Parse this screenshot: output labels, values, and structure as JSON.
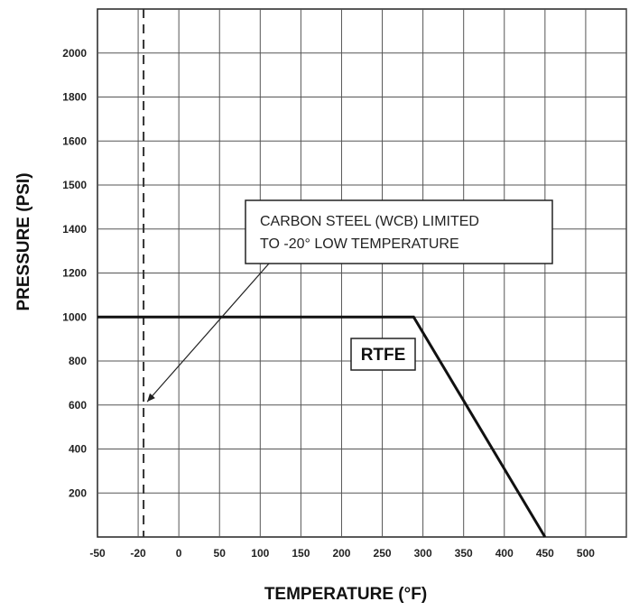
{
  "chart_data": {
    "type": "line",
    "xlabel": "TEMPERATURE (°F)",
    "ylabel": "PRESSURE (PSI)",
    "x_ticks": [
      "-50",
      "-20",
      "0",
      "50",
      "100",
      "150",
      "200",
      "250",
      "300",
      "350",
      "400",
      "450",
      "500"
    ],
    "y_ticks": [
      "200",
      "400",
      "600",
      "800",
      "1000",
      "1200",
      "1400",
      "1500",
      "1600",
      "1800",
      "2000"
    ],
    "series": [
      {
        "name": "RTFE",
        "points": [
          {
            "x": "-50",
            "y": 1000
          },
          {
            "x": "290",
            "y": 1000
          },
          {
            "x": "450",
            "y": 0
          }
        ]
      }
    ],
    "reference_line": {
      "x": "-20",
      "style": "dashed"
    },
    "annotations": [
      {
        "text_lines": [
          "CARBON STEEL (WCB) LIMITED",
          "TO -20° LOW TEMPERATURE"
        ],
        "points_to": {
          "x": "-20",
          "y": 500
        }
      }
    ],
    "grid": true,
    "colors": {
      "line": "#111111",
      "grid": "#555555",
      "background": "#ffffff"
    }
  }
}
